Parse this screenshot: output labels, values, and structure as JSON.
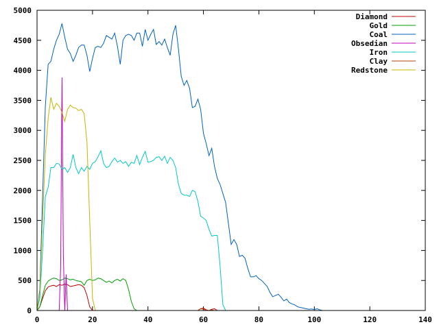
{
  "chart_data": {
    "type": "line",
    "title": "",
    "xlabel": "",
    "ylabel": "",
    "xlim": [
      0,
      140
    ],
    "ylim": [
      0,
      5000
    ],
    "x_ticks": [
      0,
      20,
      40,
      60,
      80,
      100,
      120,
      140
    ],
    "y_ticks": [
      0,
      500,
      1000,
      1500,
      2000,
      2500,
      3000,
      3500,
      4000,
      4500,
      5000
    ],
    "grid": false,
    "legend_position": "top-right",
    "series": [
      {
        "name": "Diamond",
        "color": "#c00000",
        "points": [
          [
            0,
            0
          ],
          [
            1,
            60
          ],
          [
            2,
            200
          ],
          [
            3,
            330
          ],
          [
            4,
            390
          ],
          [
            5,
            410
          ],
          [
            6,
            420
          ],
          [
            7,
            400
          ],
          [
            8,
            430
          ],
          [
            9,
            420
          ],
          [
            10,
            440
          ],
          [
            11,
            430
          ],
          [
            12,
            400
          ],
          [
            13,
            410
          ],
          [
            14,
            420
          ],
          [
            15,
            430
          ],
          [
            16,
            420
          ],
          [
            17,
            380
          ],
          [
            18,
            250
          ],
          [
            19,
            60
          ],
          [
            20,
            0
          ],
          [
            58,
            0
          ],
          [
            59,
            30
          ],
          [
            60,
            40
          ],
          [
            61,
            10
          ],
          [
            62,
            0
          ],
          [
            63,
            20
          ],
          [
            64,
            30
          ],
          [
            65,
            0
          ]
        ]
      },
      {
        "name": "Gold",
        "color": "#00a000",
        "points": [
          [
            0,
            0
          ],
          [
            1,
            60
          ],
          [
            2,
            250
          ],
          [
            3,
            420
          ],
          [
            4,
            490
          ],
          [
            5,
            520
          ],
          [
            6,
            540
          ],
          [
            7,
            530
          ],
          [
            8,
            500
          ],
          [
            9,
            510
          ],
          [
            10,
            540
          ],
          [
            11,
            530
          ],
          [
            12,
            510
          ],
          [
            13,
            520
          ],
          [
            14,
            500
          ],
          [
            15,
            490
          ],
          [
            16,
            480
          ],
          [
            17,
            420
          ],
          [
            18,
            500
          ],
          [
            19,
            520
          ],
          [
            20,
            500
          ],
          [
            21,
            510
          ],
          [
            22,
            540
          ],
          [
            23,
            530
          ],
          [
            24,
            500
          ],
          [
            25,
            470
          ],
          [
            26,
            490
          ],
          [
            27,
            460
          ],
          [
            28,
            500
          ],
          [
            29,
            520
          ],
          [
            30,
            490
          ],
          [
            31,
            530
          ],
          [
            32,
            500
          ],
          [
            33,
            350
          ],
          [
            34,
            150
          ],
          [
            35,
            30
          ],
          [
            36,
            0
          ]
        ]
      },
      {
        "name": "Coal",
        "color": "#0060c0",
        "points": [
          [
            0,
            0
          ],
          [
            1,
            350
          ],
          [
            2,
            1900
          ],
          [
            3,
            3400
          ],
          [
            4,
            4100
          ],
          [
            5,
            4150
          ],
          [
            6,
            4350
          ],
          [
            7,
            4500
          ],
          [
            8,
            4600
          ],
          [
            9,
            4780
          ],
          [
            10,
            4550
          ],
          [
            11,
            4350
          ],
          [
            12,
            4280
          ],
          [
            13,
            4150
          ],
          [
            14,
            4250
          ],
          [
            15,
            4380
          ],
          [
            16,
            4420
          ],
          [
            17,
            4420
          ],
          [
            18,
            4250
          ],
          [
            19,
            3980
          ],
          [
            20,
            4200
          ],
          [
            21,
            4380
          ],
          [
            22,
            4400
          ],
          [
            23,
            4380
          ],
          [
            24,
            4450
          ],
          [
            25,
            4580
          ],
          [
            26,
            4550
          ],
          [
            27,
            4520
          ],
          [
            28,
            4620
          ],
          [
            29,
            4400
          ],
          [
            30,
            4100
          ],
          [
            31,
            4500
          ],
          [
            32,
            4580
          ],
          [
            33,
            4600
          ],
          [
            34,
            4580
          ],
          [
            35,
            4500
          ],
          [
            36,
            4620
          ],
          [
            37,
            4620
          ],
          [
            38,
            4400
          ],
          [
            39,
            4680
          ],
          [
            40,
            4500
          ],
          [
            41,
            4600
          ],
          [
            42,
            4680
          ],
          [
            43,
            4430
          ],
          [
            44,
            4480
          ],
          [
            45,
            4420
          ],
          [
            46,
            4520
          ],
          [
            47,
            4380
          ],
          [
            48,
            4250
          ],
          [
            49,
            4600
          ],
          [
            50,
            4750
          ],
          [
            51,
            4350
          ],
          [
            52,
            3900
          ],
          [
            53,
            3750
          ],
          [
            54,
            3830
          ],
          [
            55,
            3700
          ],
          [
            56,
            3380
          ],
          [
            57,
            3400
          ],
          [
            58,
            3520
          ],
          [
            59,
            3350
          ],
          [
            60,
            2950
          ],
          [
            61,
            2780
          ],
          [
            62,
            2580
          ],
          [
            63,
            2700
          ],
          [
            64,
            2400
          ],
          [
            65,
            2200
          ],
          [
            66,
            2100
          ],
          [
            67,
            1950
          ],
          [
            68,
            1800
          ],
          [
            69,
            1450
          ],
          [
            70,
            1100
          ],
          [
            71,
            1180
          ],
          [
            72,
            1100
          ],
          [
            73,
            900
          ],
          [
            74,
            920
          ],
          [
            75,
            870
          ],
          [
            76,
            700
          ],
          [
            77,
            560
          ],
          [
            78,
            560
          ],
          [
            79,
            580
          ],
          [
            80,
            530
          ],
          [
            81,
            500
          ],
          [
            82,
            450
          ],
          [
            83,
            400
          ],
          [
            84,
            300
          ],
          [
            85,
            230
          ],
          [
            86,
            250
          ],
          [
            87,
            270
          ],
          [
            88,
            220
          ],
          [
            89,
            160
          ],
          [
            90,
            190
          ],
          [
            91,
            130
          ],
          [
            92,
            110
          ],
          [
            93,
            90
          ],
          [
            94,
            60
          ],
          [
            95,
            50
          ],
          [
            96,
            40
          ],
          [
            97,
            30
          ],
          [
            98,
            20
          ],
          [
            99,
            25
          ],
          [
            100,
            15
          ],
          [
            101,
            30
          ],
          [
            102,
            10
          ],
          [
            103,
            0
          ]
        ]
      },
      {
        "name": "Obsedian",
        "color": "#c000c0",
        "points": [
          [
            0,
            0
          ],
          [
            8,
            0
          ],
          [
            8.5,
            700
          ],
          [
            9,
            3880
          ],
          [
            9.5,
            900
          ],
          [
            10,
            0
          ],
          [
            10.5,
            600
          ],
          [
            11,
            0
          ]
        ]
      },
      {
        "name": "Iron",
        "color": "#00c8c8",
        "points": [
          [
            0,
            0
          ],
          [
            1,
            200
          ],
          [
            2,
            1000
          ],
          [
            3,
            1900
          ],
          [
            4,
            2050
          ],
          [
            5,
            2380
          ],
          [
            6,
            2380
          ],
          [
            7,
            2450
          ],
          [
            8,
            2440
          ],
          [
            9,
            2350
          ],
          [
            10,
            2380
          ],
          [
            11,
            2300
          ],
          [
            12,
            2380
          ],
          [
            13,
            2600
          ],
          [
            14,
            2380
          ],
          [
            15,
            2280
          ],
          [
            16,
            2380
          ],
          [
            17,
            2320
          ],
          [
            18,
            2400
          ],
          [
            19,
            2350
          ],
          [
            20,
            2450
          ],
          [
            21,
            2480
          ],
          [
            22,
            2560
          ],
          [
            23,
            2660
          ],
          [
            24,
            2450
          ],
          [
            25,
            2380
          ],
          [
            26,
            2400
          ],
          [
            27,
            2480
          ],
          [
            28,
            2540
          ],
          [
            29,
            2470
          ],
          [
            30,
            2500
          ],
          [
            31,
            2450
          ],
          [
            32,
            2480
          ],
          [
            33,
            2400
          ],
          [
            34,
            2470
          ],
          [
            35,
            2450
          ],
          [
            36,
            2580
          ],
          [
            37,
            2430
          ],
          [
            38,
            2550
          ],
          [
            39,
            2650
          ],
          [
            40,
            2470
          ],
          [
            41,
            2480
          ],
          [
            42,
            2500
          ],
          [
            43,
            2550
          ],
          [
            44,
            2560
          ],
          [
            45,
            2500
          ],
          [
            46,
            2570
          ],
          [
            47,
            2450
          ],
          [
            48,
            2550
          ],
          [
            49,
            2500
          ],
          [
            50,
            2380
          ],
          [
            51,
            2100
          ],
          [
            52,
            1950
          ],
          [
            53,
            1920
          ],
          [
            54,
            1920
          ],
          [
            55,
            1900
          ],
          [
            56,
            2000
          ],
          [
            57,
            1980
          ],
          [
            58,
            1820
          ],
          [
            59,
            1570
          ],
          [
            60,
            1540
          ],
          [
            61,
            1500
          ],
          [
            62,
            1350
          ],
          [
            63,
            1240
          ],
          [
            64,
            1250
          ],
          [
            65,
            1250
          ],
          [
            66,
            750
          ],
          [
            67,
            100
          ],
          [
            68,
            0
          ]
        ]
      },
      {
        "name": "Clay",
        "color": "#b04000",
        "points": [
          [
            0,
            0
          ],
          [
            58,
            0
          ],
          [
            59,
            30
          ],
          [
            60,
            20
          ],
          [
            61,
            0
          ],
          [
            62,
            0
          ],
          [
            63,
            10
          ],
          [
            64,
            0
          ]
        ]
      },
      {
        "name": "Redstone",
        "color": "#c8b400",
        "points": [
          [
            0,
            0
          ],
          [
            1,
            300
          ],
          [
            2,
            1500
          ],
          [
            3,
            2600
          ],
          [
            4,
            3200
          ],
          [
            5,
            3550
          ],
          [
            6,
            3350
          ],
          [
            7,
            3450
          ],
          [
            8,
            3400
          ],
          [
            9,
            3300
          ],
          [
            10,
            3150
          ],
          [
            11,
            3350
          ],
          [
            12,
            3420
          ],
          [
            13,
            3380
          ],
          [
            14,
            3370
          ],
          [
            15,
            3330
          ],
          [
            16,
            3350
          ],
          [
            17,
            3280
          ],
          [
            18,
            2800
          ],
          [
            19,
            1500
          ],
          [
            20,
            200
          ],
          [
            21,
            0
          ]
        ]
      }
    ]
  }
}
